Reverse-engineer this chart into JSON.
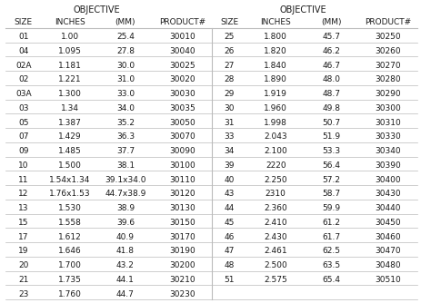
{
  "title_left": "OBJECTIVE",
  "title_right": "OBJECTIVE",
  "col_headers": [
    "SIZE",
    "INCHES",
    "(MM)",
    "PRODUCT#"
  ],
  "left_data": [
    [
      "01",
      "1.00",
      "25.4",
      "30010"
    ],
    [
      "04",
      "1.095",
      "27.8",
      "30040"
    ],
    [
      "02A",
      "1.181",
      "30.0",
      "30025"
    ],
    [
      "02",
      "1.221",
      "31.0",
      "30020"
    ],
    [
      "03A",
      "1.300",
      "33.0",
      "30030"
    ],
    [
      "03",
      "1.34",
      "34.0",
      "30035"
    ],
    [
      "05",
      "1.387",
      "35.2",
      "30050"
    ],
    [
      "07",
      "1.429",
      "36.3",
      "30070"
    ],
    [
      "09",
      "1.485",
      "37.7",
      "30090"
    ],
    [
      "10",
      "1.500",
      "38.1",
      "30100"
    ],
    [
      "11",
      "1.54x1.34",
      "39.1x34.0",
      "30110"
    ],
    [
      "12",
      "1.76x1.53",
      "44.7x38.9",
      "30120"
    ],
    [
      "13",
      "1.530",
      "38.9",
      "30130"
    ],
    [
      "15",
      "1.558",
      "39.6",
      "30150"
    ],
    [
      "17",
      "1.612",
      "40.9",
      "30170"
    ],
    [
      "19",
      "1.646",
      "41.8",
      "30190"
    ],
    [
      "20",
      "1.700",
      "43.2",
      "30200"
    ],
    [
      "21",
      "1.735",
      "44.1",
      "30210"
    ],
    [
      "23",
      "1.760",
      "44.7",
      "30230"
    ]
  ],
  "right_data": [
    [
      "25",
      "1.800",
      "45.7",
      "30250"
    ],
    [
      "26",
      "1.820",
      "46.2",
      "30260"
    ],
    [
      "27",
      "1.840",
      "46.7",
      "30270"
    ],
    [
      "28",
      "1.890",
      "48.0",
      "30280"
    ],
    [
      "29",
      "1.919",
      "48.7",
      "30290"
    ],
    [
      "30",
      "1.960",
      "49.8",
      "30300"
    ],
    [
      "31",
      "1.998",
      "50.7",
      "30310"
    ],
    [
      "33",
      "2.043",
      "51.9",
      "30330"
    ],
    [
      "34",
      "2.100",
      "53.3",
      "30340"
    ],
    [
      "39",
      "2220",
      "56.4",
      "30390"
    ],
    [
      "40",
      "2.250",
      "57.2",
      "30400"
    ],
    [
      "43",
      "2310",
      "58.7",
      "30430"
    ],
    [
      "44",
      "2.360",
      "59.9",
      "30440"
    ],
    [
      "45",
      "2.410",
      "61.2",
      "30450"
    ],
    [
      "46",
      "2.430",
      "61.7",
      "30460"
    ],
    [
      "47",
      "2.461",
      "62.5",
      "30470"
    ],
    [
      "48",
      "2.500",
      "63.5",
      "30480"
    ],
    [
      "51",
      "2.575",
      "65.4",
      "30510"
    ],
    [
      "",
      "",
      "",
      ""
    ]
  ],
  "bg_color": "#ffffff",
  "text_color": "#1a1a1a",
  "line_color": "#bbbbbb",
  "font_size": 6.5,
  "header_font_size": 6.5,
  "title_font_size": 7.0,
  "fig_width": 4.63,
  "fig_height": 3.34,
  "dpi": 100
}
